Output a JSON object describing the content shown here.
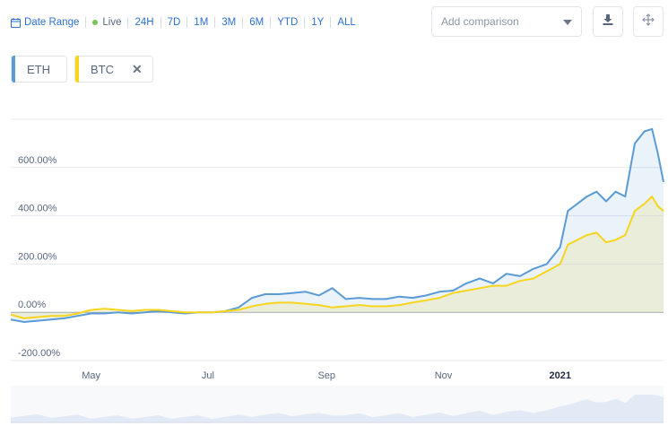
{
  "toolbar": {
    "date_range_label": "Date Range",
    "live_label": "Live",
    "ranges": [
      "24H",
      "7D",
      "1M",
      "3M",
      "6M",
      "YTD",
      "1Y",
      "ALL"
    ],
    "compare_placeholder": "Add comparison",
    "download_icon": "download-icon",
    "fullscreen_icon": "move-arrows-icon"
  },
  "legend": [
    {
      "label": "ETH",
      "color": "#5b9bd5",
      "removable": false
    },
    {
      "label": "BTC",
      "color": "#f7d51d",
      "removable": true,
      "remove_symbol": "✕"
    }
  ],
  "chart_data": {
    "type": "line",
    "y_unit": "%",
    "yticks": [
      "600.00%",
      "400.00%",
      "200.00%",
      "0.00%",
      "-200.00%"
    ],
    "ytick_values": [
      600,
      400,
      200,
      0,
      -200
    ],
    "ylim": [
      -200,
      800
    ],
    "xticks": [
      "May",
      "Jul",
      "Sep",
      "Nov",
      "2021"
    ],
    "xlim": [
      "2020-03-20",
      "2021-02-24"
    ],
    "grid": true,
    "series": [
      {
        "name": "ETH",
        "color": "#5b9bd5",
        "x": [
          "2020-03-20",
          "2020-03-27",
          "2020-04-03",
          "2020-04-10",
          "2020-04-17",
          "2020-04-24",
          "2020-05-01",
          "2020-05-08",
          "2020-05-15",
          "2020-05-22",
          "2020-05-29",
          "2020-06-05",
          "2020-06-12",
          "2020-06-19",
          "2020-06-26",
          "2020-07-03",
          "2020-07-10",
          "2020-07-17",
          "2020-07-24",
          "2020-07-31",
          "2020-08-07",
          "2020-08-14",
          "2020-08-21",
          "2020-08-28",
          "2020-09-04",
          "2020-09-11",
          "2020-09-18",
          "2020-09-25",
          "2020-10-02",
          "2020-10-09",
          "2020-10-16",
          "2020-10-23",
          "2020-10-30",
          "2020-11-06",
          "2020-11-13",
          "2020-11-20",
          "2020-11-27",
          "2020-12-04",
          "2020-12-11",
          "2020-12-18",
          "2020-12-25",
          "2021-01-01",
          "2021-01-05",
          "2021-01-10",
          "2021-01-15",
          "2021-01-20",
          "2021-01-25",
          "2021-01-30",
          "2021-02-04",
          "2021-02-09",
          "2021-02-14",
          "2021-02-18",
          "2021-02-21",
          "2021-02-24"
        ],
        "values": [
          -30,
          -40,
          -35,
          -30,
          -25,
          -15,
          -5,
          -5,
          0,
          -5,
          0,
          5,
          0,
          -5,
          0,
          0,
          5,
          20,
          60,
          75,
          75,
          80,
          85,
          70,
          100,
          55,
          60,
          55,
          55,
          65,
          60,
          70,
          85,
          90,
          120,
          140,
          120,
          160,
          150,
          180,
          200,
          270,
          420,
          450,
          480,
          500,
          460,
          500,
          480,
          700,
          750,
          760,
          660,
          540
        ]
      },
      {
        "name": "BTC",
        "color": "#f7d51d",
        "x": [
          "2020-03-20",
          "2020-03-27",
          "2020-04-03",
          "2020-04-10",
          "2020-04-17",
          "2020-04-24",
          "2020-05-01",
          "2020-05-08",
          "2020-05-15",
          "2020-05-22",
          "2020-05-29",
          "2020-06-05",
          "2020-06-12",
          "2020-06-19",
          "2020-06-26",
          "2020-07-03",
          "2020-07-10",
          "2020-07-17",
          "2020-07-24",
          "2020-07-31",
          "2020-08-07",
          "2020-08-14",
          "2020-08-21",
          "2020-08-28",
          "2020-09-04",
          "2020-09-11",
          "2020-09-18",
          "2020-09-25",
          "2020-10-02",
          "2020-10-09",
          "2020-10-16",
          "2020-10-23",
          "2020-10-30",
          "2020-11-06",
          "2020-11-13",
          "2020-11-20",
          "2020-11-27",
          "2020-12-04",
          "2020-12-11",
          "2020-12-18",
          "2020-12-25",
          "2021-01-01",
          "2021-01-05",
          "2021-01-10",
          "2021-01-15",
          "2021-01-20",
          "2021-01-25",
          "2021-01-30",
          "2021-02-04",
          "2021-02-09",
          "2021-02-14",
          "2021-02-18",
          "2021-02-21",
          "2021-02-24"
        ],
        "values": [
          -10,
          -25,
          -20,
          -15,
          -15,
          -5,
          10,
          15,
          10,
          5,
          10,
          10,
          5,
          0,
          0,
          0,
          5,
          10,
          25,
          35,
          40,
          40,
          35,
          30,
          20,
          25,
          30,
          25,
          25,
          30,
          40,
          50,
          60,
          80,
          90,
          100,
          110,
          110,
          130,
          140,
          170,
          200,
          280,
          300,
          320,
          330,
          290,
          300,
          320,
          420,
          450,
          480,
          440,
          420
        ]
      }
    ]
  }
}
